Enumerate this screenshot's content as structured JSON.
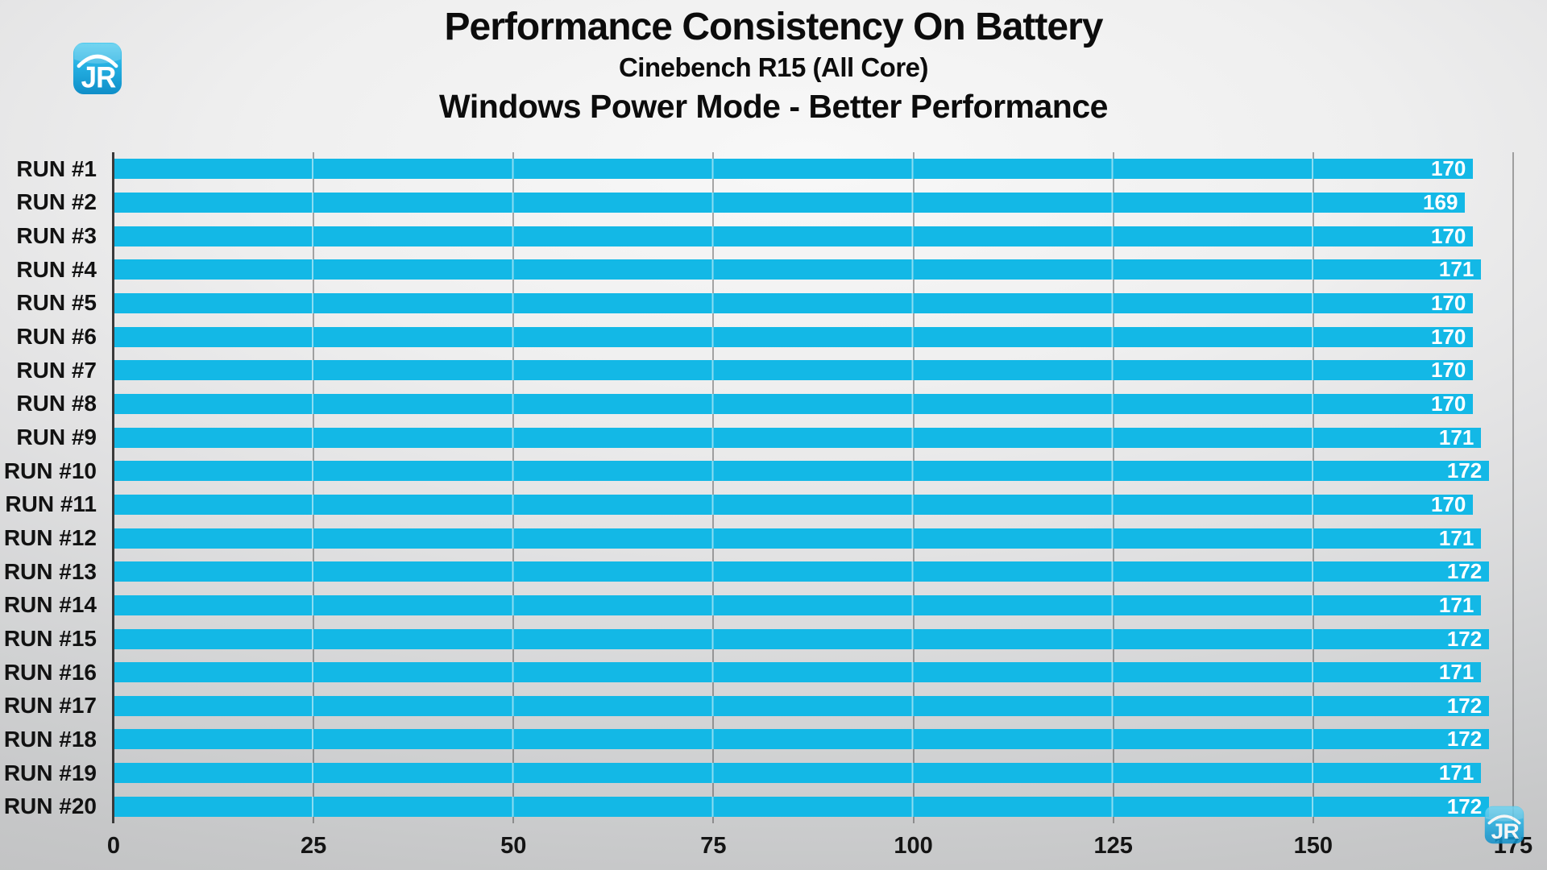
{
  "header": {
    "title": "Performance Consistency On Battery",
    "subtitle": "Cinebench R15 (All Core)",
    "subtitle2": "Windows Power Mode - Better Performance"
  },
  "logo": {
    "text": "JR"
  },
  "chart_data": {
    "type": "bar",
    "orientation": "horizontal",
    "title": "Performance Consistency On Battery",
    "subtitle": "Cinebench R15 (All Core)",
    "subtitle2": "Windows Power Mode - Better Performance",
    "categories": [
      "RUN #1",
      "RUN #2",
      "RUN #3",
      "RUN #4",
      "RUN #5",
      "RUN #6",
      "RUN #7",
      "RUN #8",
      "RUN #9",
      "RUN #10",
      "RUN #11",
      "RUN #12",
      "RUN #13",
      "RUN #14",
      "RUN #15",
      "RUN #16",
      "RUN #17",
      "RUN #18",
      "RUN #19",
      "RUN #20"
    ],
    "values": [
      170,
      169,
      170,
      171,
      170,
      170,
      170,
      170,
      171,
      172,
      170,
      171,
      172,
      171,
      172,
      171,
      172,
      172,
      171,
      172
    ],
    "xlabel": "",
    "ylabel": "",
    "xlim": [
      0,
      175
    ],
    "xticks": [
      0,
      25,
      50,
      75,
      100,
      125,
      150,
      175
    ],
    "grid": true,
    "legend": false,
    "bar_color": "#13B8E6",
    "value_label_color": "#FFFFFF",
    "axis_color": "#3A3A3A"
  }
}
